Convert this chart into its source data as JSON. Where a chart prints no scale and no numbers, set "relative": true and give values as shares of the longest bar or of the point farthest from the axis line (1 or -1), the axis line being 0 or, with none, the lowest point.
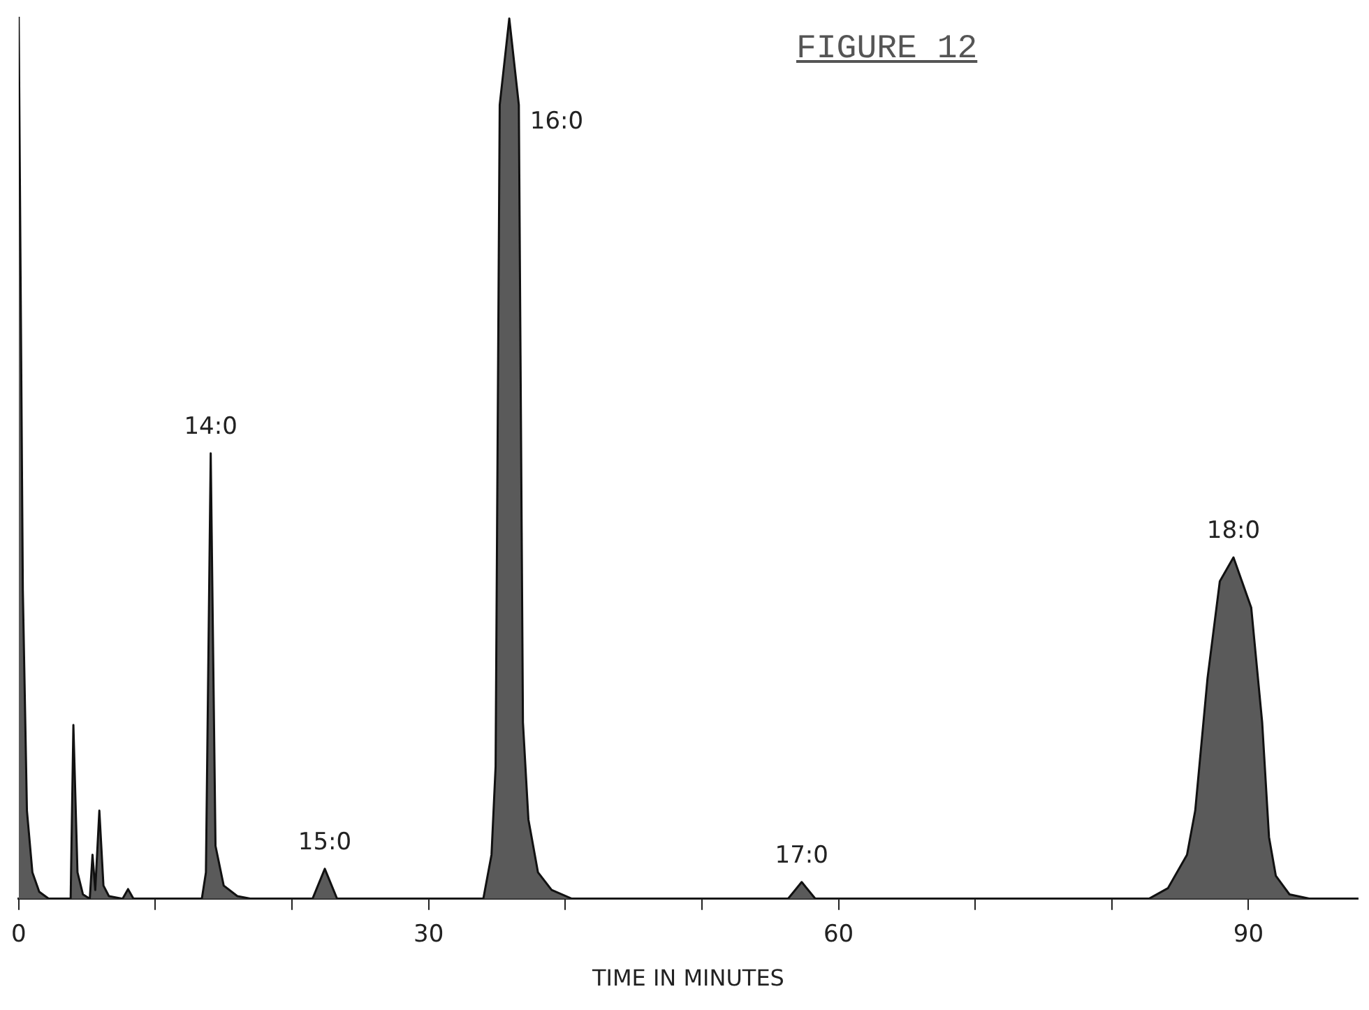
{
  "chart_data": {
    "type": "area",
    "title": "FIGURE 12",
    "xlabel": "TIME IN MINUTES",
    "relative": true,
    "color": "#5a5a5a",
    "grid": false,
    "legend": false,
    "xlim": [
      0,
      98
    ],
    "xticks": [
      0,
      {
        "value": 10,
        "label": null
      },
      {
        "value": 20,
        "label": null
      },
      30,
      {
        "value": 40,
        "label": null
      },
      {
        "value": 50,
        "label": null
      },
      60,
      {
        "value": 70,
        "label": null
      },
      {
        "value": 80,
        "label": null
      },
      90
    ],
    "x": [
      0,
      0.3,
      0.6,
      1.0,
      1.5,
      2.2,
      3.8,
      4.0,
      4.3,
      4.7,
      5.2,
      5.4,
      5.6,
      5.9,
      6.2,
      6.6,
      7.6,
      8.0,
      8.4,
      13.4,
      13.7,
      14.05,
      14.4,
      15,
      16,
      17,
      21.5,
      22.4,
      23.3,
      34.0,
      34.6,
      34.9,
      35.2,
      35.9,
      36.6,
      36.9,
      37.3,
      38,
      39,
      40.5,
      56.3,
      57.3,
      58.3,
      82.7,
      84.1,
      85.5,
      86.1,
      87.0,
      87.9,
      88.9,
      90.2,
      91.0,
      91.5,
      92.0,
      93.0,
      94.5,
      98
    ],
    "values": [
      1.0,
      0.35,
      0.1,
      0.03,
      0.008,
      0,
      0,
      0.197,
      0.03,
      0.005,
      0,
      0.05,
      0.01,
      0.1,
      0.015,
      0.003,
      0,
      0.011,
      0,
      0,
      0.03,
      0.505,
      0.06,
      0.015,
      0.003,
      0,
      0,
      0.034,
      0,
      0,
      0.05,
      0.15,
      0.9,
      0.998,
      0.9,
      0.2,
      0.09,
      0.03,
      0.01,
      0,
      0,
      0.019,
      0,
      0,
      0.012,
      0.05,
      0.1,
      0.25,
      0.36,
      0.387,
      0.33,
      0.2,
      0.07,
      0.026,
      0.005,
      0,
      0
    ],
    "annotations": [
      {
        "text": "14:0",
        "x": 14.05,
        "y": 0.505
      },
      {
        "text": "15:0",
        "x": 22.4,
        "y": 0.034
      },
      {
        "text": "16:0",
        "x": 36.6,
        "y": 0.88
      },
      {
        "text": "17:0",
        "x": 57.3,
        "y": 0.019
      },
      {
        "text": "18:0",
        "x": 88.9,
        "y": 0.387
      }
    ]
  }
}
